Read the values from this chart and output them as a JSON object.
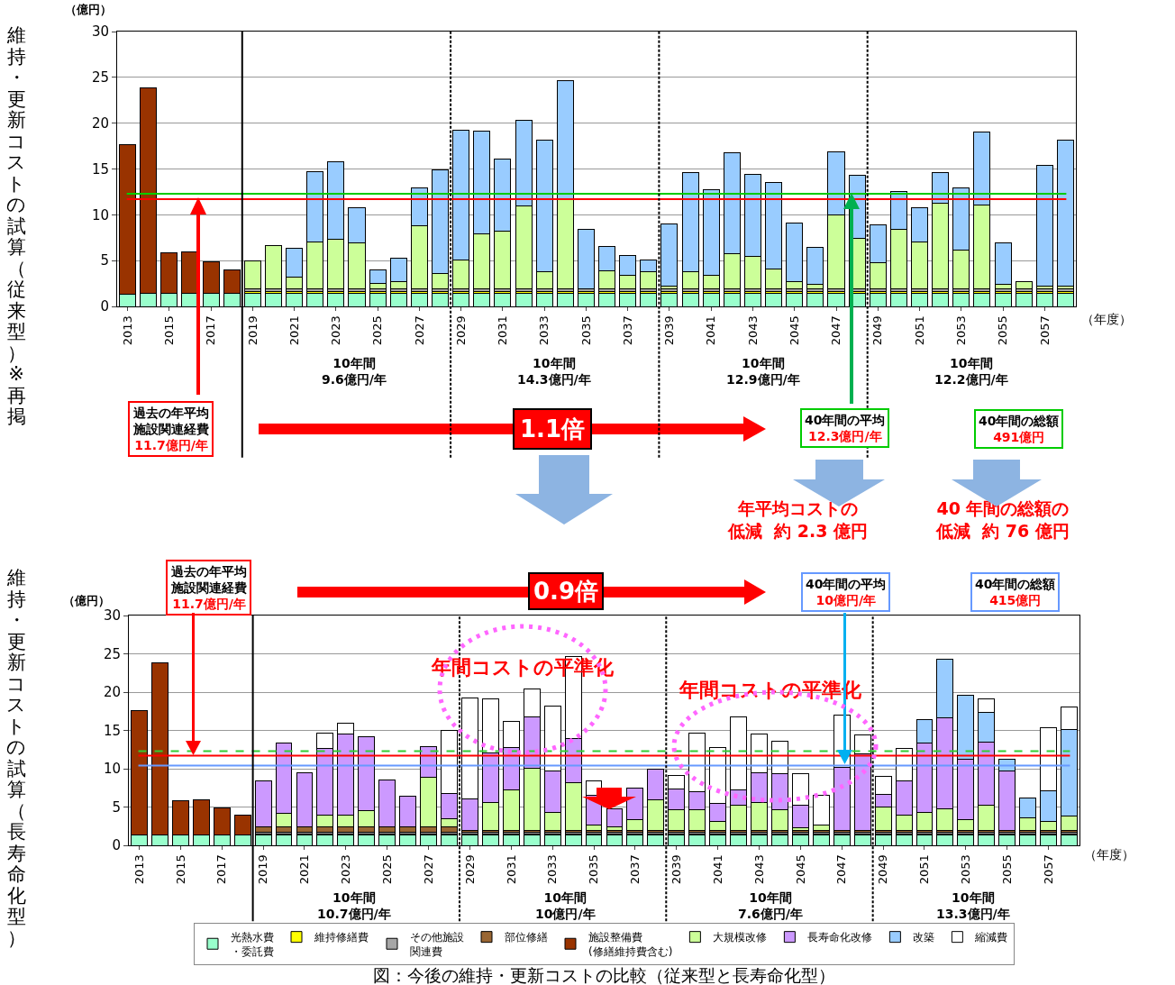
{
  "chart_data": [
    {
      "type": "bar",
      "stacked": true,
      "title": null,
      "ylabel": "維持・更新コストの試算（従来型）※再掲",
      "xlabel": "（年度）",
      "x": [
        2013,
        2014,
        2015,
        2016,
        2017,
        2018,
        2019,
        2020,
        2021,
        2022,
        2023,
        2024,
        2025,
        2026,
        2027,
        2028,
        2029,
        2030,
        2031,
        2032,
        2033,
        2034,
        2035,
        2036,
        2037,
        2038,
        2039,
        2040,
        2041,
        2042,
        2043,
        2044,
        2045,
        2046,
        2047,
        2048,
        2049,
        2050,
        2051,
        2052,
        2053,
        2054,
        2055,
        2056,
        2057,
        2058
      ],
      "xlim": [
        2012.5,
        2058.5
      ],
      "xticks": [
        2013,
        2015,
        2017,
        2019,
        2021,
        2023,
        2025,
        2027,
        2029,
        2031,
        2033,
        2035,
        2037,
        2039,
        2041,
        2043,
        2045,
        2047,
        2049,
        2051,
        2053,
        2055,
        2057
      ],
      "series": [
        {
          "color": "#99ffcc",
          "values": [
            1.3,
            1.4,
            1.4,
            1.4,
            1.4,
            1.4,
            1.4,
            1.4,
            1.4,
            1.4,
            1.4,
            1.4,
            1.4,
            1.4,
            1.4,
            1.4,
            1.4,
            1.4,
            1.4,
            1.4,
            1.4,
            1.4,
            1.4,
            1.4,
            1.4,
            1.4,
            1.4,
            1.4,
            1.4,
            1.4,
            1.4,
            1.4,
            1.4,
            1.4,
            1.4,
            1.4,
            1.4,
            1.4,
            1.4,
            1.4,
            1.4,
            1.4,
            1.4,
            1.4,
            1.4,
            1.4
          ]
        },
        {
          "color": "#ffff00",
          "values": [
            null,
            null,
            null,
            null,
            null,
            null,
            0.2,
            0.2,
            0.2,
            0.2,
            0.2,
            0.2,
            0.2,
            0.2,
            0.2,
            0.2,
            0.2,
            0.2,
            0.2,
            0.2,
            0.2,
            0.2,
            0.2,
            0.2,
            0.2,
            0.2,
            0.2,
            0.2,
            0.2,
            0.2,
            0.2,
            0.2,
            0.2,
            0.2,
            0.2,
            0.2,
            0.2,
            0.2,
            0.2,
            0.2,
            0.2,
            0.2,
            0.2,
            0.2,
            0.2,
            0.2
          ]
        },
        {
          "color": "#a6a6a6",
          "values": [
            null,
            null,
            null,
            null,
            null,
            null,
            0.3,
            0.3,
            0.3,
            0.3,
            0.3,
            0.3,
            0.3,
            0.3,
            0.3,
            0.3,
            0.3,
            0.3,
            0.3,
            0.3,
            0.3,
            0.3,
            0.3,
            0.3,
            0.3,
            0.3,
            0.3,
            0.3,
            0.3,
            0.3,
            0.3,
            0.3,
            0.3,
            0.3,
            0.3,
            0.3,
            0.3,
            0.3,
            0.3,
            0.3,
            0.3,
            0.3,
            0.3,
            0.3,
            0.3,
            0.3
          ]
        },
        {
          "color": "#993300",
          "values": [
            16.4,
            22.5,
            4.5,
            4.6,
            3.5,
            2.6,
            null,
            null,
            null,
            null,
            null,
            null,
            null,
            null,
            null,
            null,
            null,
            null,
            null,
            null,
            null,
            null,
            null,
            null,
            null,
            null,
            null,
            null,
            null,
            null,
            null,
            null,
            null,
            null,
            null,
            null,
            null,
            null,
            null,
            null,
            null,
            null,
            null,
            null,
            null,
            null
          ]
        },
        {
          "color": "#ccff99",
          "values": [
            null,
            null,
            null,
            null,
            null,
            null,
            3.1,
            4.7,
            1.3,
            5.1,
            5.4,
            5.0,
            0.6,
            0.8,
            6.9,
            1.7,
            3.2,
            6.0,
            6.3,
            9.1,
            1.9,
            9.8,
            null,
            2.0,
            1.5,
            1.9,
            0.3,
            1.9,
            1.5,
            3.9,
            3.6,
            2.2,
            0.8,
            0.5,
            8.1,
            5.5,
            2.9,
            6.5,
            5.1,
            9.4,
            4.2,
            9.2,
            0.5,
            0.8,
            0.3,
            0.3
          ]
        },
        {
          "color": "#99ccff",
          "values": [
            null,
            null,
            null,
            null,
            null,
            null,
            null,
            null,
            3.1,
            7.7,
            8.5,
            3.9,
            1.5,
            2.6,
            4.1,
            11.3,
            14.1,
            11.2,
            7.9,
            9.3,
            14.3,
            12.9,
            6.5,
            2.6,
            2.2,
            1.3,
            6.8,
            10.8,
            9.3,
            11.0,
            8.9,
            9.4,
            6.4,
            4.0,
            6.9,
            6.9,
            4.1,
            4.1,
            3.8,
            3.3,
            6.8,
            7.9,
            4.5,
            null,
            13.2,
            15.9
          ]
        }
      ],
      "ylim": [
        0,
        30
      ],
      "yticks": [
        0,
        5,
        10,
        15,
        20,
        25,
        30
      ],
      "grid": "y",
      "ref_lines": [
        {
          "axis": "y",
          "value": 11.7,
          "color": "#ff0000",
          "line_style": "solid"
        },
        {
          "axis": "y",
          "value": 12.3,
          "color": "#00cc00",
          "line_style": "solid"
        },
        {
          "axis": "x",
          "value": 2018.5,
          "color": "#000000",
          "line_style": "solid"
        },
        {
          "axis": "x",
          "value": 2028.5,
          "color": "#000000",
          "line_style": "dotted"
        },
        {
          "axis": "x",
          "value": 2038.5,
          "color": "#000000",
          "line_style": "dotted"
        },
        {
          "axis": "x",
          "value": 2048.5,
          "color": "#000000",
          "line_style": "dotted"
        }
      ],
      "annotations": [
        "（億円）",
        "10年間\n9.6億円/年",
        "10年間\n14.3億円/年",
        "10年間\n12.9億円/年",
        "10年間\n12.2億円/年",
        "過去の年平均施設関連経費11.7億円/年",
        "1.1倍",
        "40年間の平均\n12.3億円/年",
        "40年間の総額\n491億円",
        "年平均コストの低減  約 2.3 億円",
        "40 年間の総額の低減  約 76 億円"
      ]
    },
    {
      "type": "bar",
      "stacked": true,
      "title": null,
      "ylabel": "維持・更新コストの試算（長寿命化型）",
      "xlabel": "（年度）",
      "x": [
        2013,
        2014,
        2015,
        2016,
        2017,
        2018,
        2019,
        2020,
        2021,
        2022,
        2023,
        2024,
        2025,
        2026,
        2027,
        2028,
        2029,
        2030,
        2031,
        2032,
        2033,
        2034,
        2035,
        2036,
        2037,
        2038,
        2039,
        2040,
        2041,
        2042,
        2043,
        2044,
        2045,
        2046,
        2047,
        2048,
        2049,
        2050,
        2051,
        2052,
        2053,
        2054,
        2055,
        2056,
        2057,
        2058
      ],
      "xlim": [
        2012.5,
        2058.5
      ],
      "xticks": [
        2013,
        2015,
        2017,
        2019,
        2021,
        2023,
        2025,
        2027,
        2029,
        2031,
        2033,
        2035,
        2037,
        2039,
        2041,
        2043,
        2045,
        2047,
        2049,
        2051,
        2053,
        2055,
        2057
      ],
      "series": [
        {
          "name": "光熱水費・委託費",
          "color": "#99ffcc",
          "values": [
            1.3,
            1.4,
            1.4,
            1.4,
            1.4,
            1.4,
            1.4,
            1.4,
            1.4,
            1.4,
            1.4,
            1.4,
            1.4,
            1.4,
            1.4,
            1.4,
            1.4,
            1.4,
            1.4,
            1.4,
            1.4,
            1.4,
            1.4,
            1.4,
            1.4,
            1.4,
            1.4,
            1.4,
            1.4,
            1.4,
            1.4,
            1.4,
            1.4,
            1.4,
            1.4,
            1.4,
            1.4,
            1.4,
            1.4,
            1.4,
            1.4,
            1.4,
            1.4,
            1.4,
            1.4,
            1.4
          ]
        },
        {
          "name": "維持修繕費",
          "color": "#ffff00",
          "values": [
            null,
            null,
            null,
            null,
            null,
            null,
            0.1,
            0.1,
            0.1,
            0.1,
            0.1,
            0.1,
            0.1,
            0.1,
            0.1,
            0.1,
            0.1,
            0.1,
            0.1,
            0.1,
            0.1,
            0.1,
            0.1,
            0.1,
            0.1,
            0.1,
            0.1,
            0.1,
            0.1,
            0.1,
            0.1,
            0.1,
            0.1,
            0.1,
            0.1,
            0.1,
            0.1,
            0.1,
            0.1,
            0.1,
            0.1,
            0.1,
            0.1,
            0.1,
            0.1,
            0.1
          ]
        },
        {
          "name": "その他施設関連費",
          "color": "#a6a6a6",
          "values": [
            null,
            null,
            null,
            null,
            null,
            null,
            0.2,
            0.2,
            0.2,
            0.2,
            0.2,
            0.2,
            0.2,
            0.2,
            0.2,
            0.2,
            0.2,
            0.2,
            0.2,
            0.2,
            0.2,
            0.2,
            0.2,
            0.2,
            0.2,
            0.2,
            0.2,
            0.2,
            0.2,
            0.2,
            0.2,
            0.2,
            0.2,
            0.2,
            0.2,
            0.2,
            0.2,
            0.2,
            0.2,
            0.2,
            0.2,
            0.2,
            0.2,
            0.2,
            0.2,
            0.2
          ]
        },
        {
          "name": "部位修繕",
          "color": "#996633",
          "values": [
            null,
            null,
            null,
            null,
            null,
            null,
            0.7,
            0.7,
            0.7,
            0.7,
            0.7,
            0.7,
            0.7,
            0.7,
            0.7,
            0.7,
            0.3,
            0.3,
            0.3,
            0.3,
            0.3,
            0.3,
            0.3,
            0.3,
            0.3,
            0.3,
            0.3,
            0.3,
            0.3,
            0.3,
            0.3,
            0.3,
            0.3,
            0.3,
            0.3,
            0.3,
            0.3,
            0.3,
            0.3,
            0.3,
            0.3,
            0.3,
            0.3,
            0.3,
            0.3,
            0.3
          ]
        },
        {
          "name": "施設整備費\n(修繕維持費含む)",
          "color": "#993300",
          "values": [
            16.3,
            22.4,
            4.4,
            4.6,
            3.5,
            2.5,
            null,
            null,
            null,
            null,
            null,
            null,
            null,
            null,
            null,
            null,
            null,
            null,
            null,
            null,
            null,
            null,
            null,
            null,
            null,
            null,
            null,
            null,
            null,
            null,
            null,
            null,
            null,
            null,
            null,
            null,
            null,
            null,
            null,
            null,
            null,
            null,
            null,
            null,
            null,
            null
          ]
        },
        {
          "name": "大規模改修",
          "color": "#ccff99",
          "values": [
            null,
            null,
            null,
            null,
            null,
            null,
            null,
            1.8,
            null,
            1.5,
            1.6,
            2.1,
            null,
            null,
            6.5,
            1.1,
            null,
            3.6,
            5.2,
            8.1,
            2.3,
            6.2,
            0.7,
            0.4,
            1.3,
            3.9,
            2.7,
            2.6,
            1.1,
            3.2,
            3.6,
            2.6,
            0.3,
            0.6,
            null,
            null,
            3.0,
            2.0,
            2.3,
            2.8,
            1.4,
            3.2,
            null,
            1.6,
            1.1,
            1.8
          ]
        },
        {
          "name": "長寿命化改修",
          "color": "#cc99ff",
          "values": [
            null,
            null,
            null,
            null,
            null,
            null,
            6.0,
            9.2,
            7.1,
            8.7,
            10.5,
            9.7,
            6.1,
            4.0,
            4.0,
            3.3,
            4.1,
            6.5,
            5.6,
            6.7,
            5.4,
            5.8,
            3.8,
            2.4,
            4.2,
            4.1,
            2.6,
            2.4,
            2.4,
            2.0,
            3.9,
            4.7,
            2.9,
            null,
            8.2,
            10.0,
            1.7,
            4.4,
            9.1,
            11.9,
            7.8,
            8.3,
            7.7,
            null,
            null,
            null
          ]
        },
        {
          "name": "改築",
          "color": "#99ccff",
          "values": [
            null,
            null,
            null,
            null,
            null,
            null,
            null,
            null,
            null,
            null,
            null,
            null,
            null,
            null,
            null,
            null,
            null,
            null,
            null,
            null,
            null,
            null,
            null,
            null,
            null,
            null,
            null,
            null,
            null,
            null,
            null,
            null,
            null,
            null,
            null,
            null,
            null,
            null,
            3.0,
            7.6,
            8.4,
            3.8,
            1.5,
            2.6,
            4.0,
            11.3
          ]
        },
        {
          "name": "縮減費",
          "color": "#ffffff",
          "values": [
            null,
            null,
            null,
            null,
            null,
            null,
            null,
            null,
            null,
            2.1,
            1.4,
            null,
            null,
            null,
            null,
            8.2,
            13.1,
            7.0,
            3.4,
            3.6,
            8.5,
            10.6,
            1.9,
            null,
            null,
            null,
            1.8,
            7.6,
            7.3,
            9.6,
            5.0,
            4.3,
            4.1,
            3.9,
            6.8,
            2.4,
            2.3,
            4.2,
            null,
            null,
            null,
            1.8,
            null,
            null,
            8.3,
            3.0
          ]
        }
      ],
      "ylim": [
        0,
        30
      ],
      "yticks": [
        0,
        5,
        10,
        15,
        20,
        25,
        30
      ],
      "grid": "y",
      "legend": "bottom",
      "ref_lines": [
        {
          "axis": "y",
          "value": 12.3,
          "color": "#33cc33",
          "line_style": "dashed"
        },
        {
          "axis": "y",
          "value": 11.7,
          "color": "#ff0000",
          "line_style": "solid"
        },
        {
          "axis": "y",
          "value": 10.4,
          "color": "#6699ff",
          "line_style": "solid"
        },
        {
          "axis": "x",
          "value": 2018.5,
          "color": "#000000",
          "line_style": "solid"
        },
        {
          "axis": "x",
          "value": 2028.5,
          "color": "#000000",
          "line_style": "dotted"
        },
        {
          "axis": "x",
          "value": 2038.5,
          "color": "#000000",
          "line_style": "dotted"
        },
        {
          "axis": "x",
          "value": 2048.5,
          "color": "#000000",
          "line_style": "dotted"
        }
      ],
      "annotations": [
        "（億円）",
        "過去の年平均施設関連経費11.7億円/年",
        "0.9倍",
        "40年間の平均\n10億円/年",
        "40年間の総額\n415億円",
        "年間コストの平準化",
        "年間コストの平準化",
        "10年間\n10.7億円/年",
        "10年間\n10億円/年",
        "10年間\n7.6億円/年",
        "10年間\n13.3億円/年",
        "図：今後の維持・更新コストの比較（従来型と長寿命化型）"
      ]
    }
  ]
}
